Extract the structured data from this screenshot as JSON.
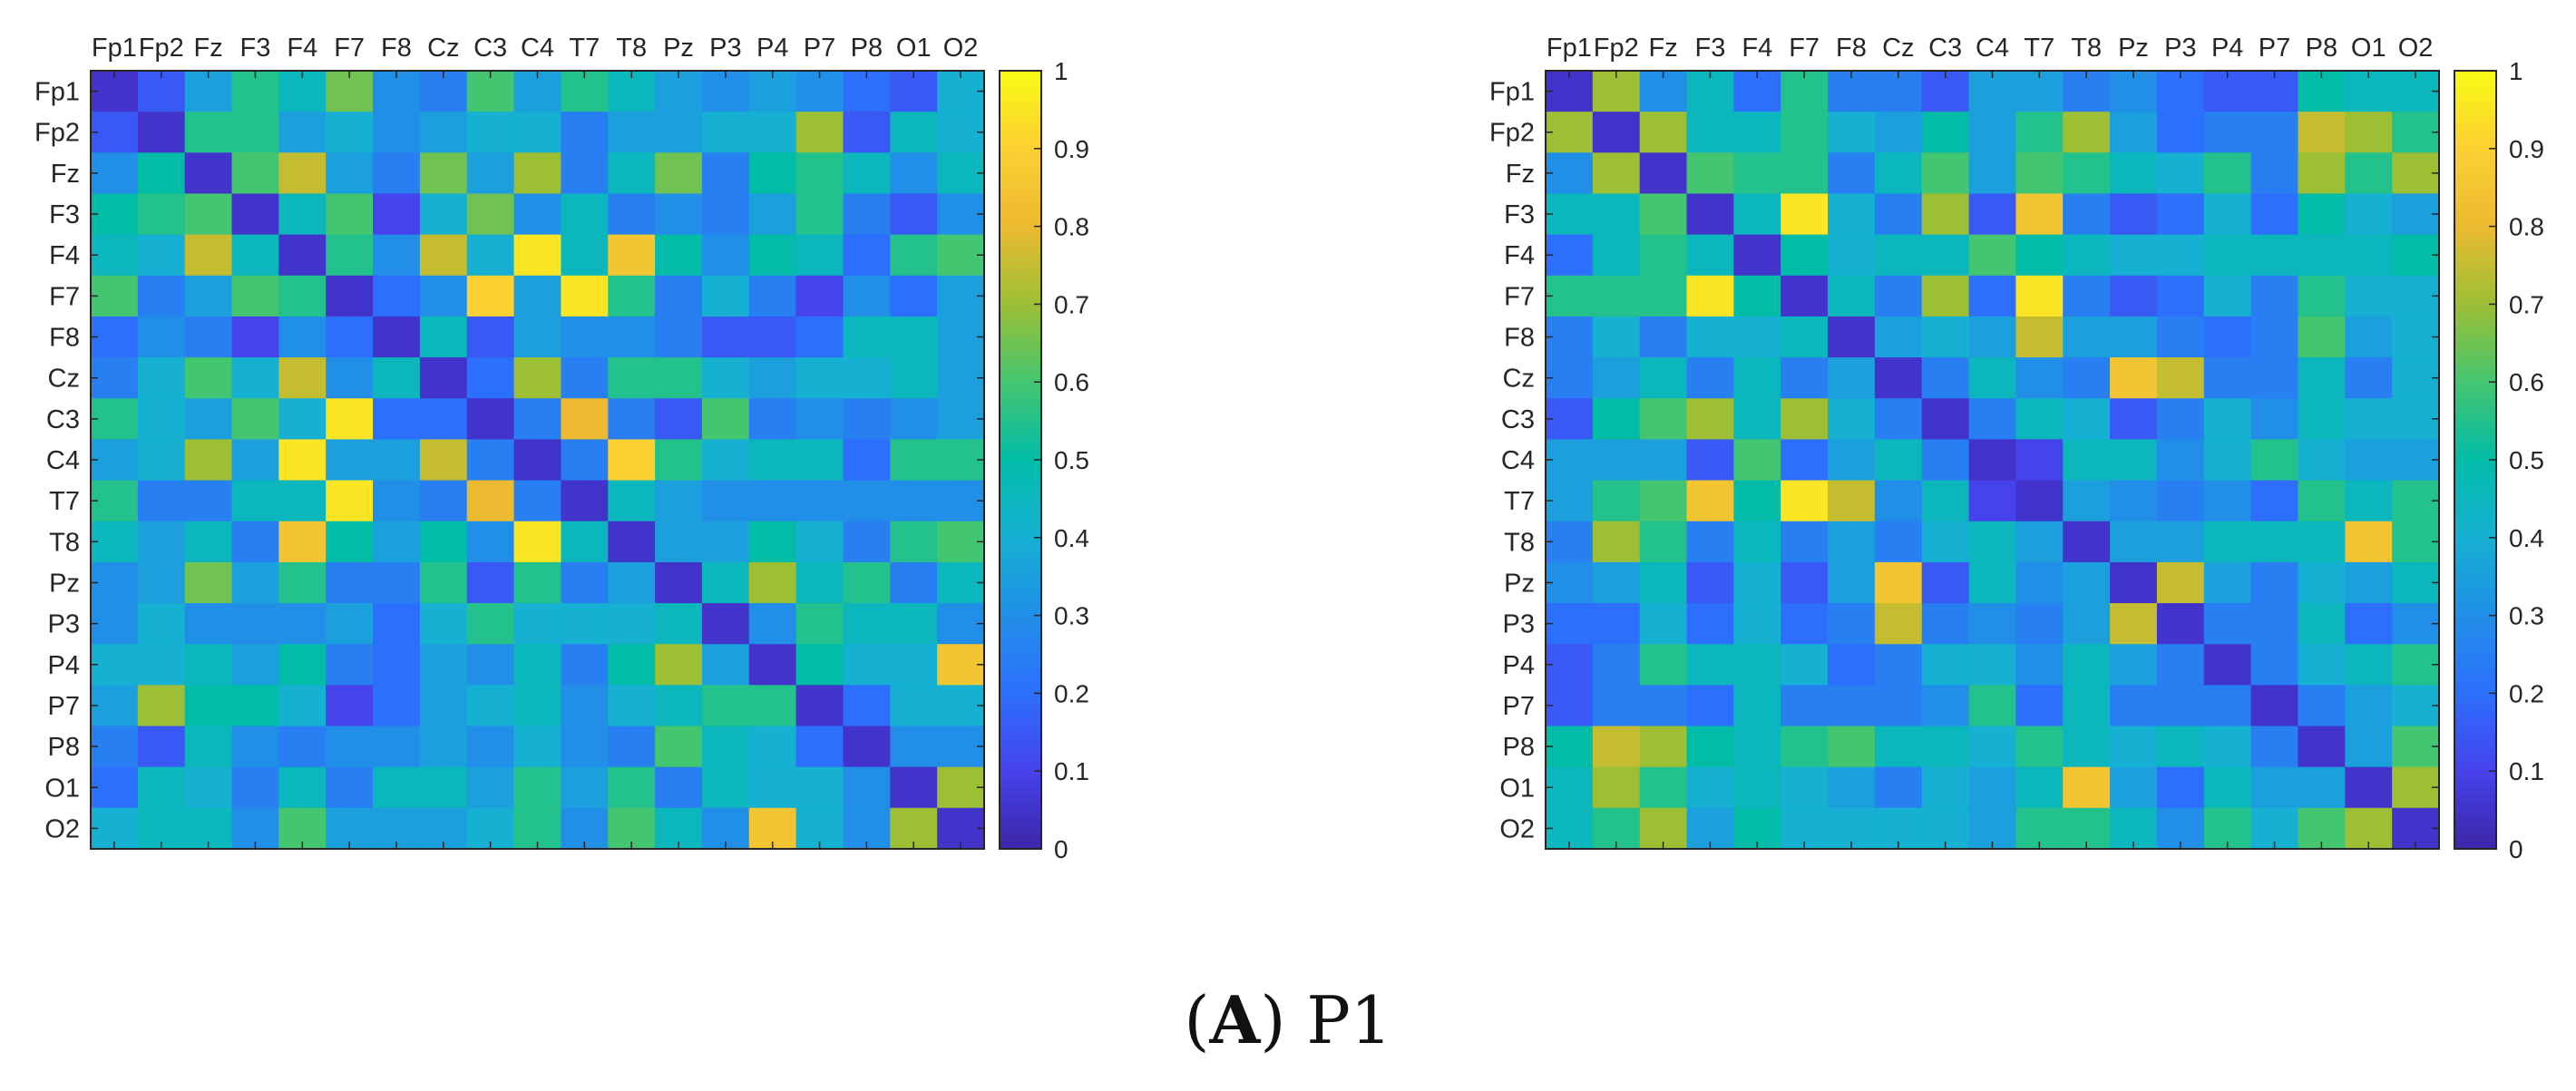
{
  "caption": {
    "panel_label": "A",
    "subject": "P1"
  },
  "chart_data": [
    {
      "type": "heatmap",
      "title": "",
      "channels": [
        "Fp1",
        "Fp2",
        "Fz",
        "F3",
        "F4",
        "F7",
        "F8",
        "Cz",
        "C3",
        "C4",
        "T7",
        "T8",
        "Pz",
        "P3",
        "P4",
        "P7",
        "P8",
        "O1",
        "O2"
      ],
      "matrix": [
        [
          0.05,
          0.15,
          0.35,
          0.55,
          0.45,
          0.65,
          0.3,
          0.25,
          0.6,
          0.35,
          0.55,
          0.45,
          0.35,
          0.3,
          0.35,
          0.3,
          0.2,
          0.15,
          0.4
        ],
        [
          0.15,
          0.05,
          0.55,
          0.55,
          0.35,
          0.4,
          0.3,
          0.35,
          0.4,
          0.4,
          0.25,
          0.35,
          0.35,
          0.4,
          0.4,
          0.7,
          0.15,
          0.45,
          0.4
        ],
        [
          0.3,
          0.5,
          0.05,
          0.6,
          0.75,
          0.35,
          0.25,
          0.65,
          0.35,
          0.7,
          0.25,
          0.45,
          0.65,
          0.25,
          0.5,
          0.55,
          0.45,
          0.3,
          0.45
        ],
        [
          0.5,
          0.55,
          0.6,
          0.05,
          0.45,
          0.6,
          0.1,
          0.4,
          0.65,
          0.3,
          0.45,
          0.25,
          0.3,
          0.25,
          0.35,
          0.55,
          0.25,
          0.15,
          0.3
        ],
        [
          0.45,
          0.4,
          0.75,
          0.45,
          0.05,
          0.55,
          0.3,
          0.75,
          0.4,
          0.95,
          0.45,
          0.85,
          0.5,
          0.3,
          0.5,
          0.45,
          0.2,
          0.55,
          0.6
        ],
        [
          0.6,
          0.25,
          0.35,
          0.6,
          0.55,
          0.05,
          0.2,
          0.3,
          0.9,
          0.35,
          0.95,
          0.55,
          0.25,
          0.4,
          0.25,
          0.1,
          0.3,
          0.2,
          0.35
        ],
        [
          0.2,
          0.3,
          0.25,
          0.1,
          0.3,
          0.2,
          0.05,
          0.45,
          0.15,
          0.35,
          0.3,
          0.3,
          0.25,
          0.15,
          0.15,
          0.2,
          0.45,
          0.45,
          0.35
        ],
        [
          0.25,
          0.4,
          0.6,
          0.4,
          0.75,
          0.3,
          0.45,
          0.05,
          0.2,
          0.7,
          0.25,
          0.55,
          0.55,
          0.4,
          0.35,
          0.4,
          0.4,
          0.45,
          0.35
        ],
        [
          0.55,
          0.4,
          0.35,
          0.6,
          0.4,
          0.95,
          0.2,
          0.2,
          0.05,
          0.25,
          0.8,
          0.25,
          0.15,
          0.6,
          0.25,
          0.3,
          0.25,
          0.3,
          0.35
        ],
        [
          0.35,
          0.4,
          0.7,
          0.35,
          0.95,
          0.35,
          0.35,
          0.75,
          0.25,
          0.05,
          0.25,
          0.9,
          0.55,
          0.4,
          0.45,
          0.45,
          0.2,
          0.55,
          0.55
        ],
        [
          0.55,
          0.25,
          0.25,
          0.45,
          0.45,
          0.95,
          0.3,
          0.25,
          0.8,
          0.25,
          0.05,
          0.45,
          0.35,
          0.3,
          0.3,
          0.3,
          0.3,
          0.3,
          0.3
        ],
        [
          0.45,
          0.35,
          0.45,
          0.25,
          0.85,
          0.5,
          0.35,
          0.5,
          0.3,
          0.95,
          0.45,
          0.05,
          0.35,
          0.35,
          0.5,
          0.4,
          0.25,
          0.55,
          0.6
        ],
        [
          0.3,
          0.35,
          0.65,
          0.35,
          0.55,
          0.25,
          0.25,
          0.55,
          0.15,
          0.55,
          0.25,
          0.35,
          0.05,
          0.45,
          0.7,
          0.45,
          0.55,
          0.25,
          0.45
        ],
        [
          0.3,
          0.4,
          0.3,
          0.3,
          0.3,
          0.35,
          0.2,
          0.4,
          0.55,
          0.4,
          0.4,
          0.4,
          0.45,
          0.05,
          0.3,
          0.55,
          0.45,
          0.45,
          0.3
        ],
        [
          0.4,
          0.4,
          0.45,
          0.35,
          0.5,
          0.25,
          0.2,
          0.35,
          0.3,
          0.45,
          0.25,
          0.5,
          0.7,
          0.35,
          0.05,
          0.5,
          0.4,
          0.4,
          0.85
        ],
        [
          0.35,
          0.7,
          0.5,
          0.5,
          0.4,
          0.1,
          0.2,
          0.35,
          0.4,
          0.45,
          0.3,
          0.4,
          0.45,
          0.55,
          0.55,
          0.05,
          0.2,
          0.4,
          0.4
        ],
        [
          0.25,
          0.15,
          0.45,
          0.3,
          0.25,
          0.3,
          0.3,
          0.35,
          0.3,
          0.4,
          0.3,
          0.25,
          0.6,
          0.45,
          0.4,
          0.2,
          0.05,
          0.3,
          0.3
        ],
        [
          0.2,
          0.45,
          0.4,
          0.25,
          0.45,
          0.25,
          0.45,
          0.45,
          0.35,
          0.55,
          0.35,
          0.55,
          0.25,
          0.45,
          0.4,
          0.4,
          0.3,
          0.05,
          0.7
        ],
        [
          0.4,
          0.45,
          0.45,
          0.3,
          0.6,
          0.35,
          0.35,
          0.35,
          0.4,
          0.55,
          0.3,
          0.6,
          0.45,
          0.3,
          0.85,
          0.4,
          0.3,
          0.7,
          0.05
        ]
      ],
      "colorbar": {
        "min": 0,
        "max": 1,
        "ticks": [
          0,
          0.1,
          0.2,
          0.3,
          0.4,
          0.5,
          0.6,
          0.7,
          0.8,
          0.9,
          1
        ],
        "colormap": "parula"
      }
    },
    {
      "type": "heatmap",
      "title": "",
      "channels": [
        "Fp1",
        "Fp2",
        "Fz",
        "F3",
        "F4",
        "F7",
        "F8",
        "Cz",
        "C3",
        "C4",
        "T7",
        "T8",
        "Pz",
        "P3",
        "P4",
        "P7",
        "P8",
        "O1",
        "O2"
      ],
      "matrix": [
        [
          0.05,
          0.7,
          0.3,
          0.45,
          0.2,
          0.55,
          0.25,
          0.25,
          0.15,
          0.35,
          0.35,
          0.25,
          0.3,
          0.2,
          0.15,
          0.15,
          0.5,
          0.45,
          0.45
        ],
        [
          0.7,
          0.05,
          0.7,
          0.45,
          0.45,
          0.55,
          0.4,
          0.35,
          0.5,
          0.35,
          0.55,
          0.7,
          0.35,
          0.2,
          0.25,
          0.25,
          0.75,
          0.7,
          0.55
        ],
        [
          0.3,
          0.7,
          0.05,
          0.6,
          0.55,
          0.55,
          0.25,
          0.45,
          0.6,
          0.35,
          0.6,
          0.55,
          0.45,
          0.4,
          0.55,
          0.25,
          0.7,
          0.55,
          0.7
        ],
        [
          0.45,
          0.45,
          0.6,
          0.05,
          0.45,
          0.95,
          0.4,
          0.25,
          0.7,
          0.15,
          0.85,
          0.25,
          0.15,
          0.2,
          0.4,
          0.2,
          0.5,
          0.4,
          0.35
        ],
        [
          0.2,
          0.45,
          0.55,
          0.45,
          0.05,
          0.5,
          0.4,
          0.45,
          0.45,
          0.6,
          0.5,
          0.45,
          0.4,
          0.4,
          0.45,
          0.45,
          0.45,
          0.45,
          0.5
        ],
        [
          0.55,
          0.55,
          0.55,
          0.95,
          0.5,
          0.05,
          0.45,
          0.25,
          0.7,
          0.2,
          0.95,
          0.25,
          0.15,
          0.2,
          0.4,
          0.25,
          0.55,
          0.4,
          0.4
        ],
        [
          0.25,
          0.4,
          0.25,
          0.4,
          0.4,
          0.45,
          0.05,
          0.35,
          0.4,
          0.35,
          0.75,
          0.35,
          0.35,
          0.25,
          0.2,
          0.25,
          0.6,
          0.35,
          0.4
        ],
        [
          0.25,
          0.35,
          0.45,
          0.25,
          0.45,
          0.25,
          0.35,
          0.05,
          0.25,
          0.45,
          0.3,
          0.25,
          0.85,
          0.75,
          0.25,
          0.25,
          0.45,
          0.25,
          0.4
        ],
        [
          0.15,
          0.5,
          0.6,
          0.7,
          0.45,
          0.7,
          0.4,
          0.25,
          0.05,
          0.25,
          0.45,
          0.4,
          0.15,
          0.25,
          0.4,
          0.3,
          0.45,
          0.4,
          0.4
        ],
        [
          0.35,
          0.35,
          0.35,
          0.15,
          0.6,
          0.2,
          0.35,
          0.45,
          0.25,
          0.05,
          0.1,
          0.45,
          0.45,
          0.3,
          0.4,
          0.55,
          0.4,
          0.35,
          0.35
        ],
        [
          0.35,
          0.55,
          0.6,
          0.85,
          0.5,
          0.95,
          0.75,
          0.3,
          0.45,
          0.1,
          0.05,
          0.35,
          0.3,
          0.25,
          0.3,
          0.2,
          0.55,
          0.45,
          0.55
        ],
        [
          0.25,
          0.7,
          0.55,
          0.25,
          0.45,
          0.25,
          0.35,
          0.25,
          0.4,
          0.45,
          0.35,
          0.05,
          0.35,
          0.35,
          0.45,
          0.45,
          0.45,
          0.85,
          0.55
        ],
        [
          0.3,
          0.35,
          0.45,
          0.15,
          0.4,
          0.15,
          0.35,
          0.85,
          0.15,
          0.45,
          0.3,
          0.35,
          0.05,
          0.75,
          0.35,
          0.25,
          0.4,
          0.35,
          0.45
        ],
        [
          0.2,
          0.2,
          0.4,
          0.2,
          0.4,
          0.2,
          0.25,
          0.75,
          0.25,
          0.3,
          0.25,
          0.35,
          0.75,
          0.05,
          0.25,
          0.25,
          0.45,
          0.2,
          0.3
        ],
        [
          0.15,
          0.25,
          0.55,
          0.45,
          0.45,
          0.4,
          0.2,
          0.25,
          0.4,
          0.4,
          0.3,
          0.45,
          0.35,
          0.25,
          0.05,
          0.25,
          0.4,
          0.45,
          0.55
        ],
        [
          0.15,
          0.25,
          0.25,
          0.2,
          0.45,
          0.25,
          0.25,
          0.25,
          0.3,
          0.55,
          0.2,
          0.45,
          0.25,
          0.25,
          0.25,
          0.05,
          0.25,
          0.35,
          0.4
        ],
        [
          0.5,
          0.75,
          0.7,
          0.5,
          0.45,
          0.55,
          0.6,
          0.45,
          0.45,
          0.4,
          0.55,
          0.45,
          0.4,
          0.45,
          0.4,
          0.25,
          0.05,
          0.35,
          0.6
        ],
        [
          0.45,
          0.7,
          0.55,
          0.4,
          0.45,
          0.4,
          0.35,
          0.25,
          0.4,
          0.35,
          0.45,
          0.85,
          0.35,
          0.2,
          0.45,
          0.35,
          0.35,
          0.05,
          0.7
        ],
        [
          0.45,
          0.55,
          0.7,
          0.35,
          0.5,
          0.4,
          0.4,
          0.4,
          0.4,
          0.35,
          0.55,
          0.55,
          0.45,
          0.3,
          0.55,
          0.4,
          0.6,
          0.7,
          0.05
        ]
      ],
      "colorbar": {
        "min": 0,
        "max": 1,
        "ticks": [
          0,
          0.1,
          0.2,
          0.3,
          0.4,
          0.5,
          0.6,
          0.7,
          0.8,
          0.9,
          1
        ],
        "colormap": "parula"
      }
    }
  ]
}
